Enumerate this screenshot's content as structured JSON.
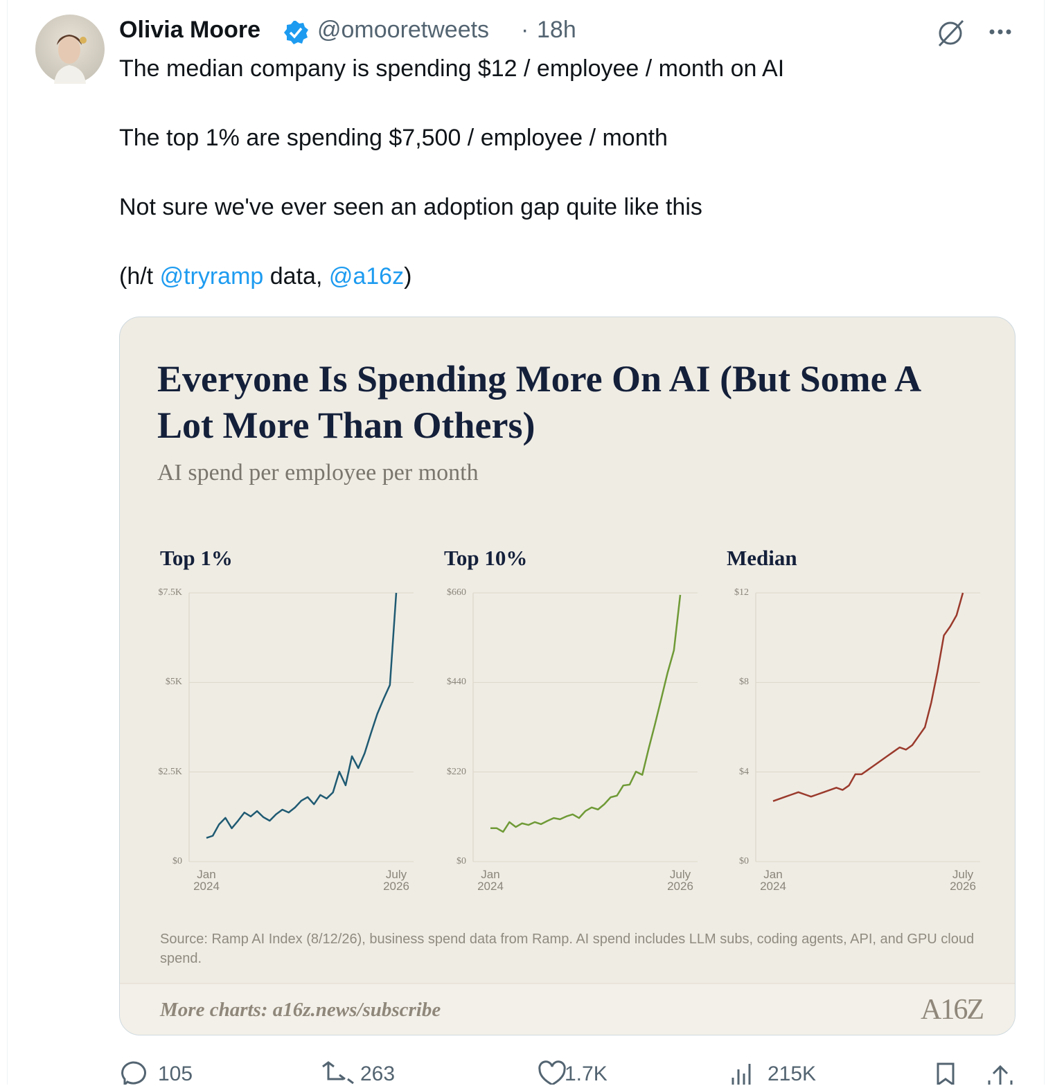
{
  "tweet": {
    "author": "Olivia Moore",
    "handle": "@omooretweets",
    "separator": "·",
    "time": "18h",
    "lines": [
      "The median company is spending $12 / employee / month on AI",
      "The top 1% are spending $7,500 / employee / month",
      "Not sure we've ever seen an adoption gap quite like this"
    ],
    "credit": [
      "(h/t ",
      "@tryramp",
      " data, ",
      "@a16z",
      ")"
    ]
  },
  "media": {
    "title": "Everyone Is Spending More On AI (But Some A Lot More Than Others)",
    "subtitle": "AI spend per employee per month",
    "source": "Source: Ramp AI Index (8/12/26), business spend data from Ramp. AI spend includes LLM subs, coding agents, API, and GPU cloud spend.",
    "footer": "More charts: a16z.news/subscribe",
    "logo": "A16Z"
  },
  "chart_data": [
    {
      "type": "line",
      "title": "Top 1%",
      "color": "#1f5a72",
      "grid": true,
      "categories": [
        "Jan 2024",
        null,
        null,
        null,
        null,
        null,
        null,
        null,
        null,
        null,
        null,
        null,
        null,
        null,
        null,
        null,
        null,
        null,
        null,
        null,
        null,
        null,
        null,
        null,
        null,
        null,
        null,
        null,
        null,
        null,
        "July 2026"
      ],
      "values": [
        660,
        720,
        1040,
        1220,
        930,
        1140,
        1370,
        1260,
        1410,
        1240,
        1140,
        1320,
        1450,
        1370,
        1510,
        1700,
        1800,
        1600,
        1860,
        1760,
        1930,
        2510,
        2130,
        2940,
        2610,
        3020,
        3580,
        4120,
        4540,
        4930,
        7500
      ],
      "ylim": [
        0,
        7500
      ],
      "yticks": [
        {
          "value": 0,
          "label": "$0"
        },
        {
          "value": 2500,
          "label": "$2.5K"
        },
        {
          "value": 5000,
          "label": "$5K"
        },
        {
          "value": 7500,
          "label": "$7.5K"
        }
      ]
    },
    {
      "type": "line",
      "title": "Top 10%",
      "color": "#6f9a36",
      "grid": true,
      "categories": [
        "Jan 2024",
        null,
        null,
        null,
        null,
        null,
        null,
        null,
        null,
        null,
        null,
        null,
        null,
        null,
        null,
        null,
        null,
        null,
        null,
        null,
        null,
        null,
        null,
        null,
        null,
        null,
        null,
        null,
        null,
        null,
        "July 2026"
      ],
      "values": [
        82,
        82,
        73,
        97,
        85,
        94,
        90,
        97,
        92,
        100,
        107,
        104,
        111,
        116,
        107,
        124,
        133,
        128,
        141,
        158,
        162,
        187,
        189,
        221,
        213,
        277,
        337,
        400,
        464,
        519,
        655
      ],
      "ylim": [
        0,
        660
      ],
      "yticks": [
        {
          "value": 0,
          "label": "$0"
        },
        {
          "value": 220,
          "label": "$220"
        },
        {
          "value": 440,
          "label": "$440"
        },
        {
          "value": 660,
          "label": "$660"
        }
      ]
    },
    {
      "type": "line",
      "title": "Median",
      "color": "#9a3a2c",
      "grid": true,
      "categories": [
        "Jan 2024",
        null,
        null,
        null,
        null,
        null,
        null,
        null,
        null,
        null,
        null,
        null,
        null,
        null,
        null,
        null,
        null,
        null,
        null,
        null,
        null,
        null,
        null,
        null,
        null,
        null,
        null,
        null,
        null,
        null,
        "July 2026"
      ],
      "values": [
        2.7,
        2.8,
        2.9,
        3.0,
        3.1,
        3.0,
        2.9,
        3.0,
        3.1,
        3.2,
        3.3,
        3.2,
        3.4,
        3.9,
        3.9,
        4.1,
        4.3,
        4.5,
        4.7,
        4.9,
        5.1,
        5.0,
        5.2,
        5.6,
        6.0,
        7.1,
        8.5,
        10.1,
        10.5,
        11.0,
        12.0
      ],
      "ylim": [
        0,
        12
      ],
      "yticks": [
        {
          "value": 0,
          "label": "$0"
        },
        {
          "value": 4,
          "label": "$4"
        },
        {
          "value": 8,
          "label": "$8"
        },
        {
          "value": 12,
          "label": "$12"
        }
      ]
    }
  ],
  "actions": {
    "replies": "105",
    "reposts": "263",
    "likes": "1.7K",
    "views": "215K"
  }
}
